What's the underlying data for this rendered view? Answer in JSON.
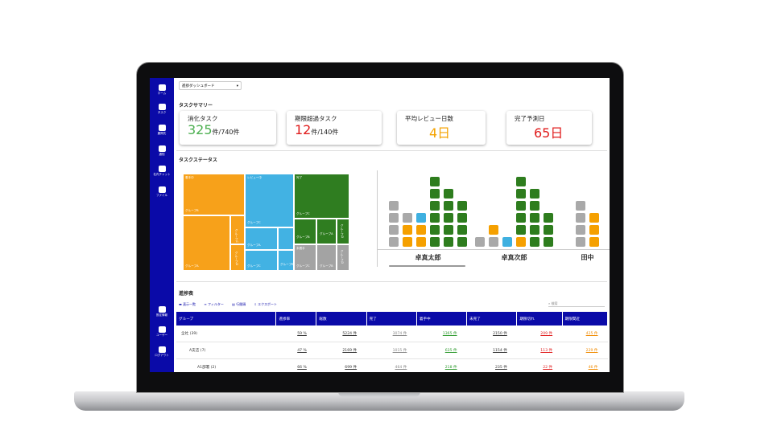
{
  "sidebar": {
    "top": [
      "ホーム",
      "タスク",
      "顧問先",
      "通知",
      "社内チャット",
      "ファイル"
    ],
    "bottom": [
      "設定情報",
      "ユーザー",
      "ログアウト"
    ]
  },
  "header": {
    "dropdown": "進捗ダッシュボード"
  },
  "summary": {
    "title": "タスクサマリー",
    "cards": [
      {
        "label": "消化タスク",
        "value": "325",
        "unit": "件/740件",
        "color": "#4caf50"
      },
      {
        "label": "期限超過タスク",
        "value": "12",
        "unit": "件/140件",
        "color": "#e01b1b"
      },
      {
        "label": "平均レビュー日数",
        "value": "4日",
        "color": "#f5a300"
      },
      {
        "label": "完了予測日",
        "value": "65日",
        "color": "#e01b1b"
      }
    ]
  },
  "status": {
    "title": "タスクステータス",
    "treemap": {
      "orange": [
        "着手中",
        "グループB",
        "グループA",
        "グループC",
        "グループD"
      ],
      "blue": [
        "レビュー中",
        "グループC",
        "グループA",
        "グループC",
        "グループB"
      ],
      "green": [
        "完了",
        "グループC",
        "グループB",
        "グループA",
        "グループD"
      ],
      "gray": [
        "未着手",
        "グループC",
        "グループB",
        "グループD"
      ]
    },
    "waffle": [
      {
        "name": "卓真太郎",
        "columns": [
          [
            {
              "color": "#a9a9a9",
              "count": 4
            }
          ],
          [
            {
              "color": "#f5a000",
              "count": 2
            },
            {
              "color": "#a9a9a9",
              "count": 1
            }
          ],
          [
            {
              "color": "#f5a000",
              "count": 2
            },
            {
              "color": "#3fb0e0",
              "count": 1
            }
          ],
          [
            {
              "color": "#2e7d1e",
              "count": 6
            }
          ],
          [
            {
              "color": "#2e7d1e",
              "count": 5
            }
          ],
          [
            {
              "color": "#2e7d1e",
              "count": 4
            }
          ]
        ]
      },
      {
        "name": "卓真次郎",
        "columns": [
          [
            {
              "color": "#a9a9a9",
              "count": 1
            }
          ],
          [
            {
              "color": "#a9a9a9",
              "count": 1
            },
            {
              "color": "#f5a000",
              "count": 1
            }
          ],
          [
            {
              "color": "#3fb0e0",
              "count": 1
            }
          ],
          [
            {
              "color": "#f5a000",
              "count": 1
            },
            {
              "color": "#2e7d1e",
              "count": 5
            }
          ],
          [
            {
              "color": "#2e7d1e",
              "count": 5
            }
          ],
          [
            {
              "color": "#2e7d1e",
              "count": 3
            }
          ]
        ]
      },
      {
        "name": "田中",
        "columns": [
          [
            {
              "color": "#a9a9a9",
              "count": 4
            }
          ],
          [
            {
              "color": "#f5a000",
              "count": 3
            }
          ]
        ]
      }
    ]
  },
  "progress": {
    "title": "進捗表",
    "toolbar": [
      "表示一覧",
      "フィルター",
      "行間隔",
      "エクスポート"
    ],
    "search": "検索",
    "table": {
      "header": [
        "グループ",
        "進捗率",
        "総数",
        "完了",
        "着手中",
        "未完了",
        "期限切れ",
        "期限間近"
      ],
      "rows": [
        [
          "全社 (39)",
          "59 %",
          "5224 件",
          "3074 件",
          "1365 件",
          "2150 件",
          "209 件",
          "425 件"
        ],
        [
          "A支店 (7)",
          "47 %",
          "2169 件",
          "1015 件",
          "635 件",
          "1154 件",
          "113 件",
          "229 件"
        ],
        [
          "A1部署 (2)",
          "66 %",
          "699 件",
          "464 件",
          "218 件",
          "235 件",
          "22 件",
          "46 件"
        ]
      ]
    }
  }
}
